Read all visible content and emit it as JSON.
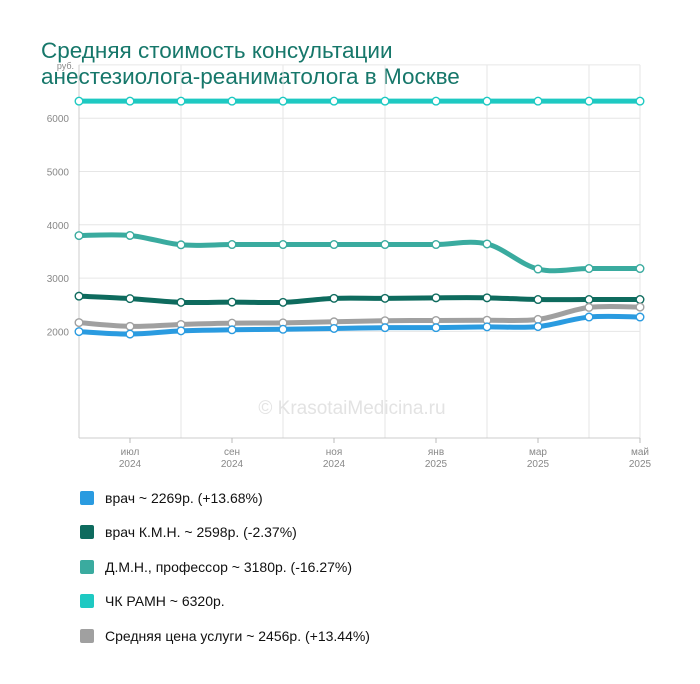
{
  "title_lines": [
    "Средняя стоимость консультации",
    "анестезиолога-реаниматолога в Москве"
  ],
  "watermark": "© KrasotaiMedicina.ru",
  "chart_data": {
    "type": "line",
    "title": "Средняя стоимость консультации анестезиолога-реаниматолога в Москве",
    "y_unit": "руб.",
    "ylim": [
      0,
      7000
    ],
    "yticks": [
      2000,
      3000,
      4000,
      5000,
      6000
    ],
    "grid": true,
    "legend_position": "bottom",
    "x_tick_labels": [
      {
        "month": "июл",
        "year": "2024",
        "index": 1
      },
      {
        "month": "сен",
        "year": "2024",
        "index": 3
      },
      {
        "month": "ноя",
        "year": "2024",
        "index": 5
      },
      {
        "month": "янв",
        "year": "2025",
        "index": 7
      },
      {
        "month": "мар",
        "year": "2025",
        "index": 9
      },
      {
        "month": "май",
        "year": "2025",
        "index": 11
      }
    ],
    "point_count": 12,
    "series": [
      {
        "name": "ЧК РАМН ~ 6320р.",
        "color": "#1ec9c2",
        "values": [
          6320,
          6320,
          6320,
          6320,
          6320,
          6320,
          6320,
          6320,
          6320,
          6320,
          6320,
          6320
        ]
      },
      {
        "name": "Д.М.Н., профессор ~ 3180р. (-16.27%)",
        "color": "#3aab9f",
        "values": [
          3798,
          3800,
          3625,
          3630,
          3630,
          3630,
          3630,
          3630,
          3640,
          3170,
          3180,
          3180
        ]
      },
      {
        "name": "врач К.М.Н. ~ 2598р. (-2.37%)",
        "color": "#0e6b5e",
        "values": [
          2661,
          2615,
          2545,
          2550,
          2545,
          2620,
          2620,
          2630,
          2630,
          2598,
          2598,
          2598
        ]
      },
      {
        "name": "Средняя цена услуги ~ 2456р. (+13.44%)",
        "color": "#a0a0a0",
        "values": [
          2165,
          2095,
          2130,
          2155,
          2160,
          2180,
          2200,
          2205,
          2210,
          2225,
          2450,
          2456
        ]
      },
      {
        "name": "врач ~ 2269р. (+13.68%)",
        "color": "#2a9be0",
        "values": [
          1996,
          1950,
          2010,
          2030,
          2040,
          2055,
          2070,
          2070,
          2085,
          2090,
          2269,
          2269
        ]
      }
    ]
  },
  "legend": [
    {
      "label": "врач ~ 2269р. (+13.68%)",
      "color": "#2a9be0"
    },
    {
      "label": "врач К.М.Н. ~ 2598р. (-2.37%)",
      "color": "#0e6b5e"
    },
    {
      "label": "Д.М.Н., профессор ~ 3180р. (-16.27%)",
      "color": "#3aab9f"
    },
    {
      "label": "ЧК РАМН ~ 6320р.",
      "color": "#1ec9c2"
    },
    {
      "label": "Средняя цена услуги ~ 2456р. (+13.44%)",
      "color": "#a0a0a0"
    }
  ]
}
